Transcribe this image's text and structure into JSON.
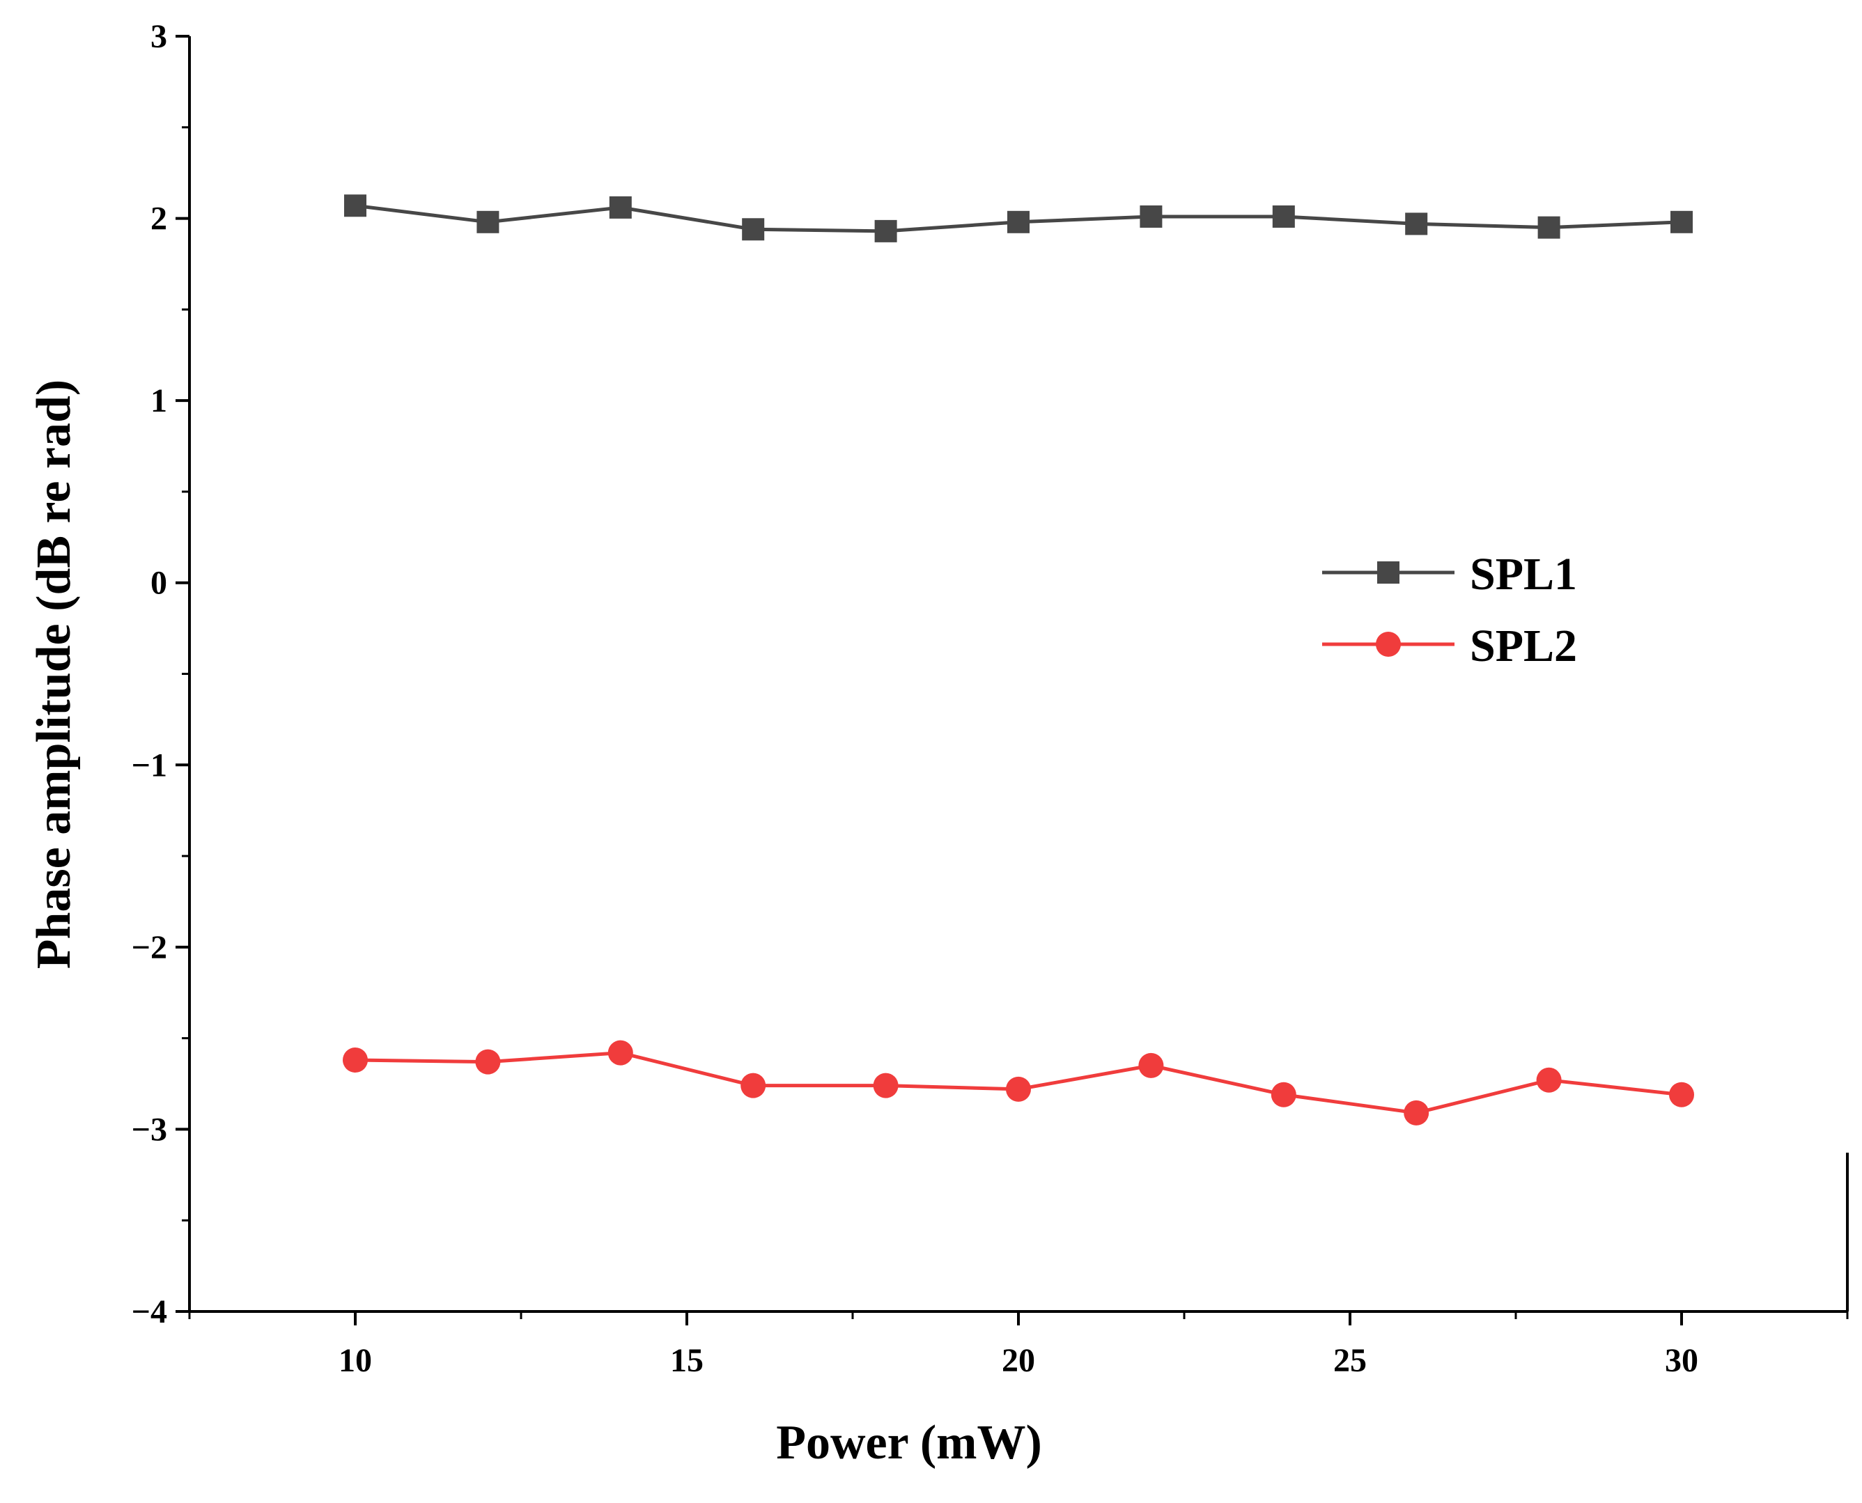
{
  "chart_data": {
    "type": "line",
    "title": "",
    "xlabel": "Power (mW)",
    "ylabel": "Phase amplitude (dB re rad)",
    "xlim": [
      7.5,
      32.5
    ],
    "ylim": [
      -4,
      3
    ],
    "xticks": [
      10,
      15,
      20,
      25,
      30
    ],
    "xtick_labels": [
      "10",
      "15",
      "20",
      "25",
      "30"
    ],
    "yticks": [
      3,
      2,
      1,
      0,
      -1,
      -2,
      -3,
      -4
    ],
    "ytick_labels": [
      "3",
      "2",
      "1",
      "0",
      "−1",
      "−2",
      "−3",
      "−4"
    ],
    "grid": false,
    "legend_position": "center-right",
    "x": [
      10,
      12,
      14,
      16,
      18,
      20,
      22,
      24,
      26,
      28,
      30
    ],
    "series": [
      {
        "name": "SPL1",
        "marker": "square",
        "color": "#474747",
        "values": [
          2.07,
          1.98,
          2.06,
          1.94,
          1.93,
          1.98,
          2.01,
          2.01,
          1.97,
          1.95,
          1.98
        ]
      },
      {
        "name": "SPL2",
        "marker": "circle",
        "color": "#f03c3c",
        "values": [
          -2.62,
          -2.63,
          -2.58,
          -2.76,
          -2.76,
          -2.78,
          -2.65,
          -2.81,
          -2.91,
          -2.73,
          -2.81
        ]
      }
    ]
  }
}
